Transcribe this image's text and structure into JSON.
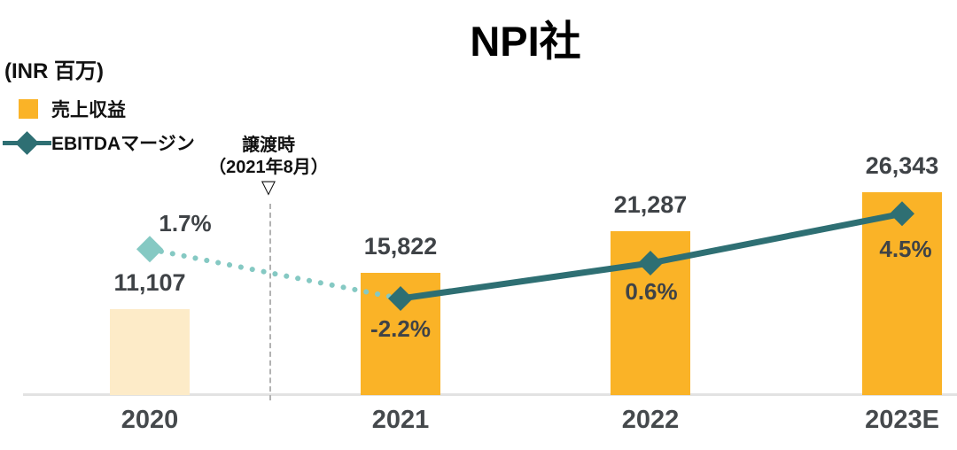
{
  "title": "NPI社",
  "unit_label": "(INR 百万)",
  "legend": {
    "revenue": "売上収益",
    "ebitda": "EBITDAマージン"
  },
  "annotation": {
    "line1": "譲渡時",
    "line2": "（2021年8月）",
    "marker_glyph": "▽"
  },
  "colors": {
    "bar_orange": "#FAB327",
    "bar_faded": "#FDEBC8",
    "line_teal_dark": "#2E6F73",
    "line_teal_light": "#85C9C3",
    "label_dark_gray": "#3F4347",
    "axis_gray": "#E2E2E2",
    "dashed_line_gray": "#B2B2B2"
  },
  "chart_data": {
    "type": "bar",
    "title": "NPI社",
    "ylabel": "(INR 百万)",
    "categories": [
      "2020",
      "2021",
      "2022",
      "2023E"
    ],
    "grid": false,
    "legend_position": "top-left",
    "annotation_text": "譲渡時（2021年8月）",
    "series": [
      {
        "name": "売上収益",
        "type": "bar",
        "values": [
          11107,
          15822,
          21287,
          26343
        ],
        "value_labels": [
          "11,107",
          "15,822",
          "21,287",
          "26,343"
        ],
        "bar_colors": [
          "#FDEBC8",
          "#FAB327",
          "#FAB327",
          "#FAB327"
        ]
      },
      {
        "name": "EBITDAマージン",
        "type": "line",
        "values": [
          1.7,
          -2.2,
          0.6,
          4.5
        ],
        "point_labels": [
          "1.7%",
          "-2.2%",
          "0.6%",
          "4.5%"
        ],
        "marker_colors": [
          "#85C9C3",
          "#2E6F73",
          "#2E6F73",
          "#2E6F73"
        ],
        "segment_styles": [
          "dotted",
          "solid",
          "solid"
        ]
      }
    ]
  }
}
